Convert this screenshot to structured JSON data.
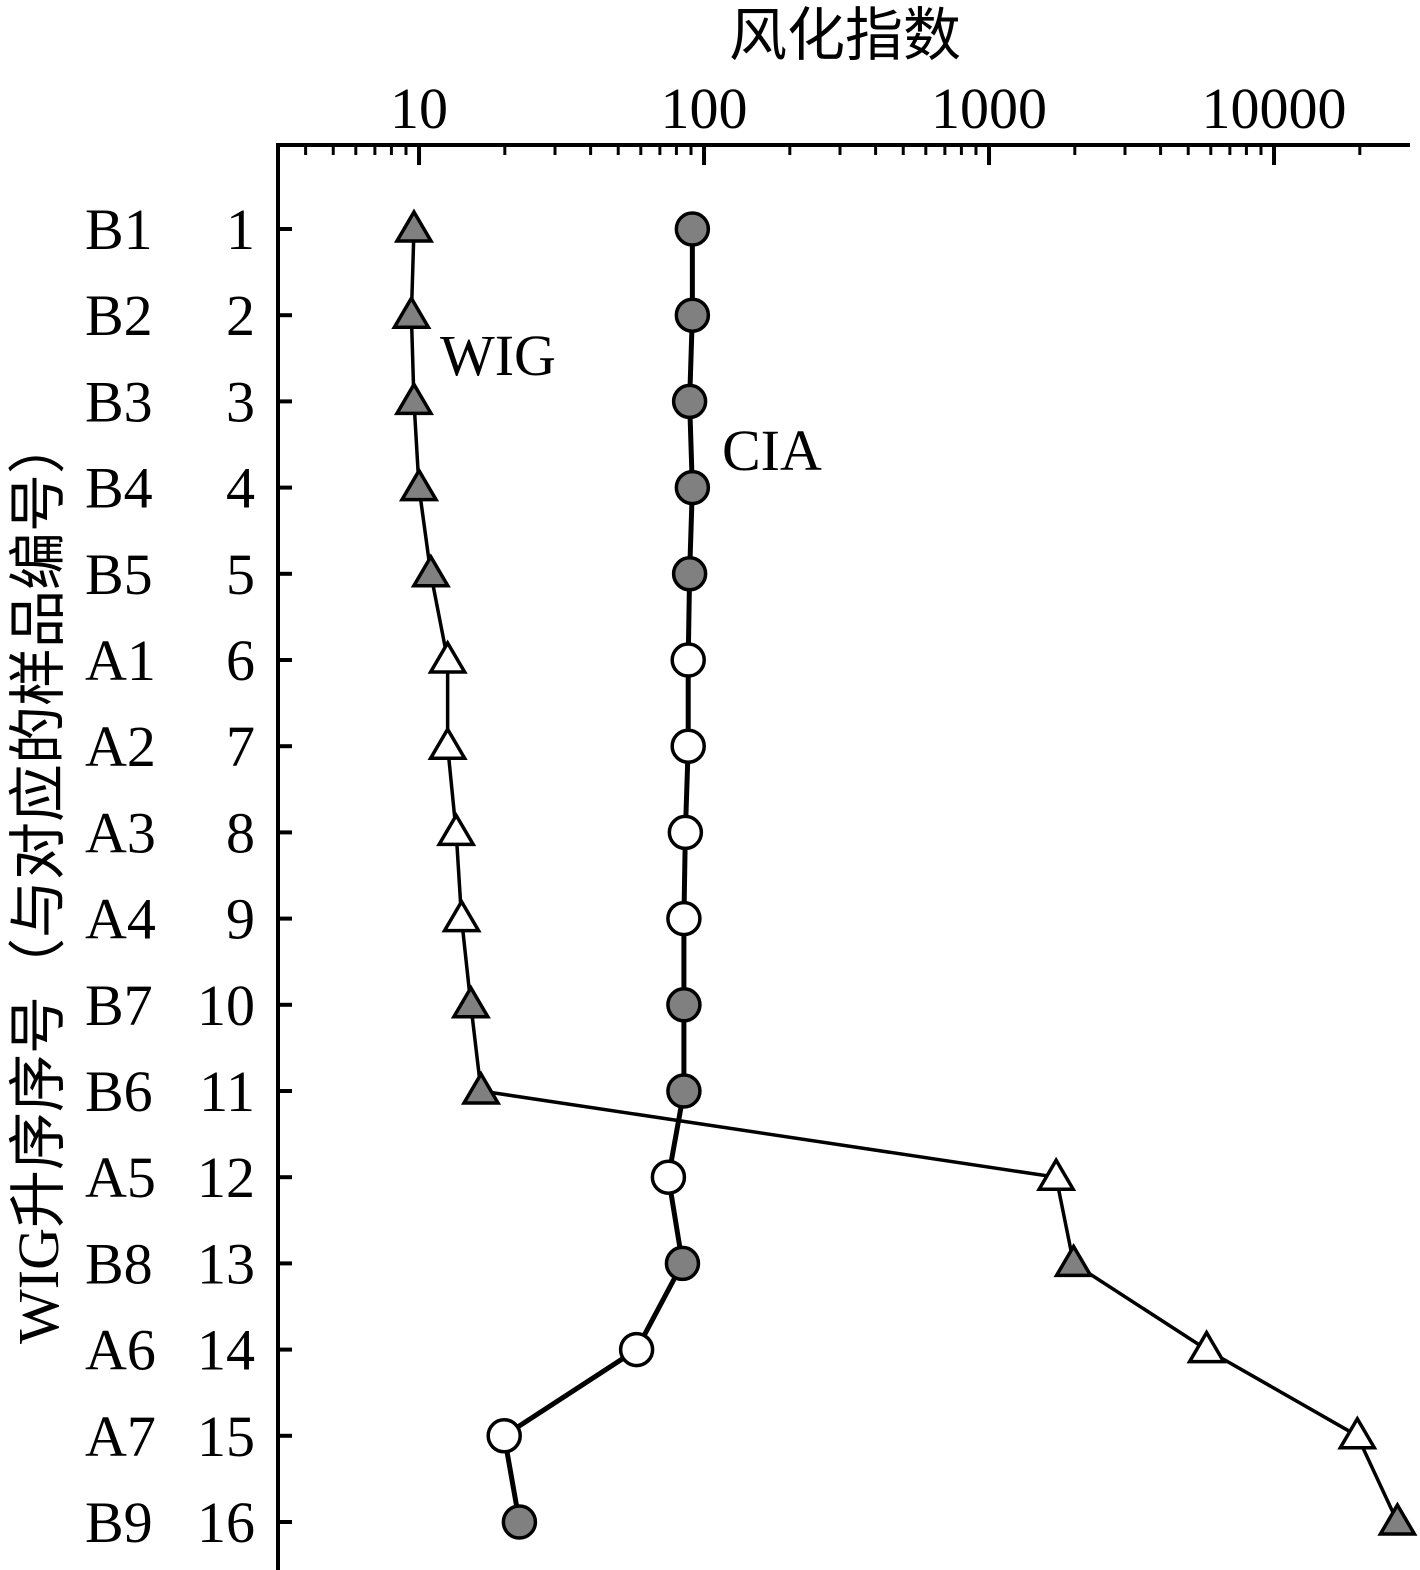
{
  "chart_data": {
    "type": "line",
    "x_label": "风化指数",
    "y_label": "WIG升序序号（与对应的样品编号）",
    "categories": [
      "1",
      "2",
      "3",
      "4",
      "5",
      "6",
      "7",
      "8",
      "9",
      "10",
      "11",
      "12",
      "13",
      "14",
      "15",
      "16"
    ],
    "sample_labels": [
      "B1",
      "B2",
      "B3",
      "B4",
      "B5",
      "A1",
      "A2",
      "A3",
      "A4",
      "B7",
      "B6",
      "A5",
      "B8",
      "A6",
      "A7",
      "B9"
    ],
    "point_colors": [
      "#808080",
      "#808080",
      "#808080",
      "#808080",
      "#808080",
      "#ffffff",
      "#ffffff",
      "#ffffff",
      "#ffffff",
      "#808080",
      "#808080",
      "#ffffff",
      "#808080",
      "#ffffff",
      "#ffffff",
      "#808080"
    ],
    "x_scale": "log",
    "xlim": [
      3.2,
      30000
    ],
    "xticks": [
      10,
      100,
      1000,
      10000
    ],
    "series": [
      {
        "name": "WIG",
        "color": "#000000",
        "marker": "triangle",
        "values": [
          9.6,
          9.4,
          9.6,
          10,
          11.0,
          12.6,
          12.6,
          13.5,
          14.1,
          15.2,
          16.5,
          1720,
          1980,
          5800,
          19600,
          27100
        ]
      },
      {
        "name": "CIA",
        "color": "#000000",
        "marker": "circle",
        "values": [
          91,
          91,
          89,
          91,
          89,
          88,
          88,
          86,
          85,
          85,
          85,
          75,
          84,
          58,
          19.9,
          22.5
        ]
      }
    ]
  }
}
